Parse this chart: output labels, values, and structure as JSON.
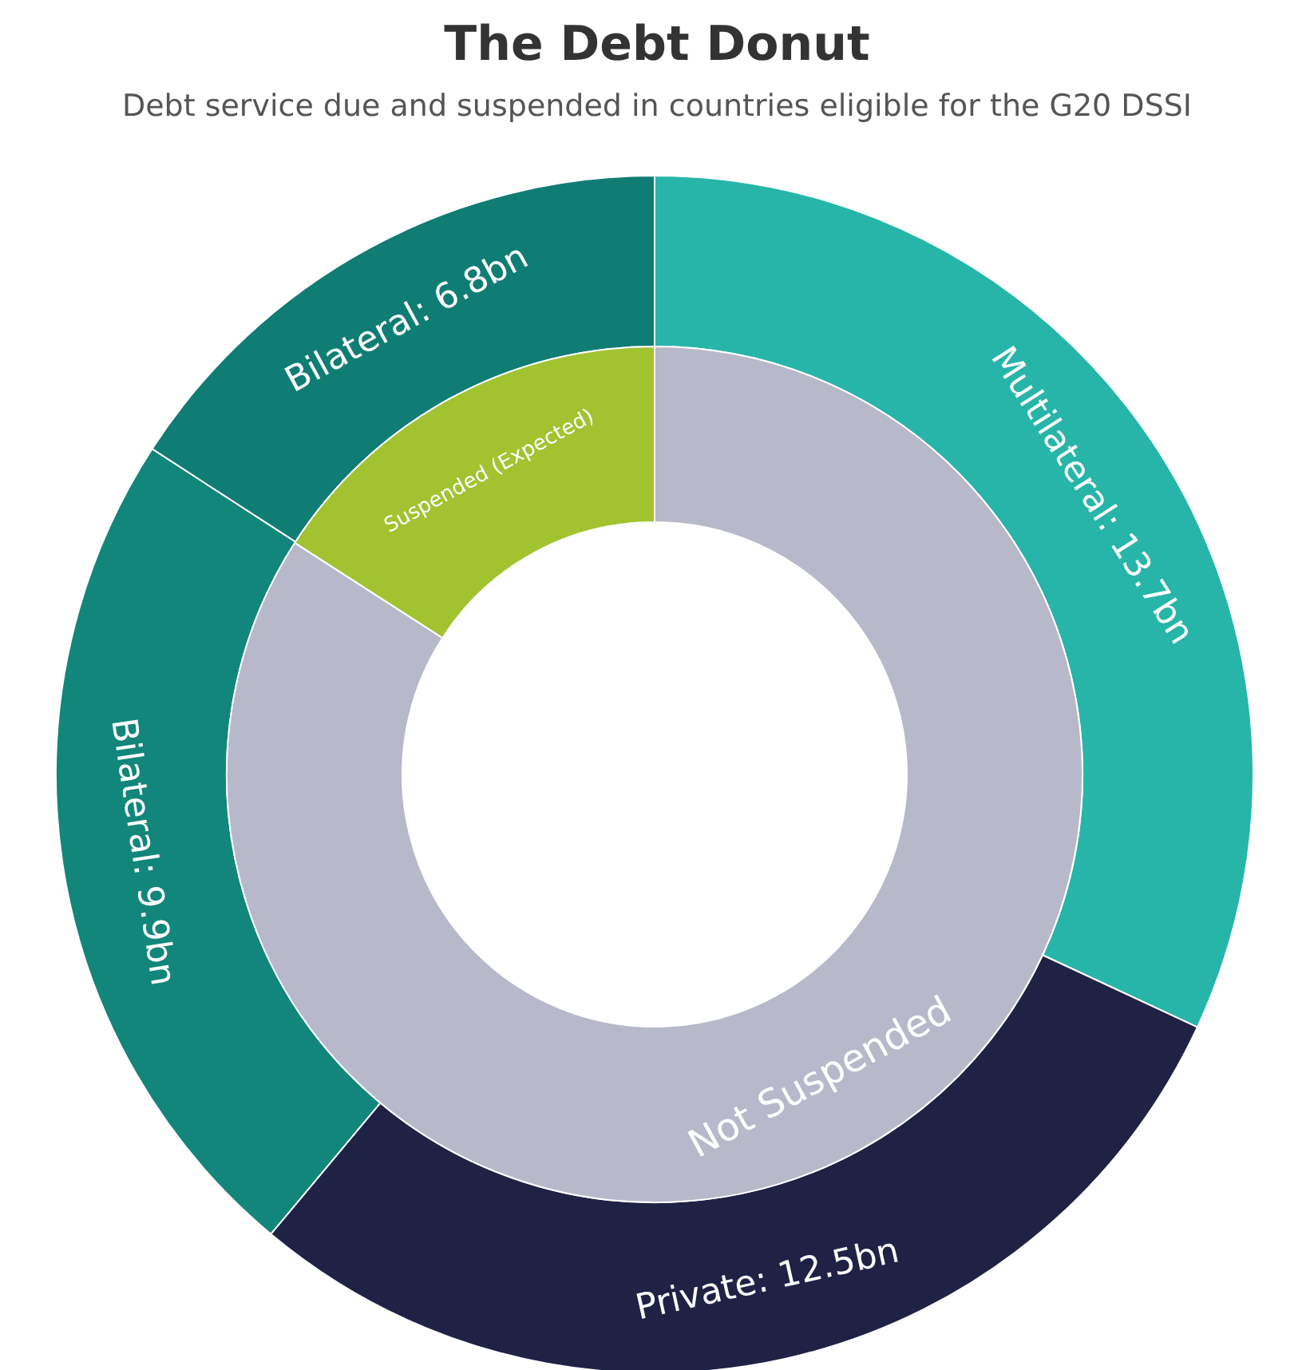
{
  "chart_data": [
    {
      "type": "donut",
      "title": "The Debt Donut",
      "subtitle": "Debt service due and suspended in countries eligible for the G20 DSSI",
      "categories": [
        "Multilateral",
        "Private",
        "Bilateral",
        "Bilateral"
      ],
      "values": [
        13.7,
        12.5,
        9.9,
        6.8
      ],
      "value_labels": [
        "13.7bn",
        "12.5bn",
        "9.9bn",
        "6.8bn"
      ],
      "colors": [
        "#27b5aa",
        "#1f2145",
        "#12867b",
        "#0f7d73"
      ]
    },
    {
      "type": "donut",
      "categories": [
        "Not Suspended",
        "Suspended (Expected)"
      ],
      "values": [
        84.1,
        15.9
      ],
      "colors": [
        "#b7b9ca",
        "#a1c330"
      ]
    }
  ]
}
